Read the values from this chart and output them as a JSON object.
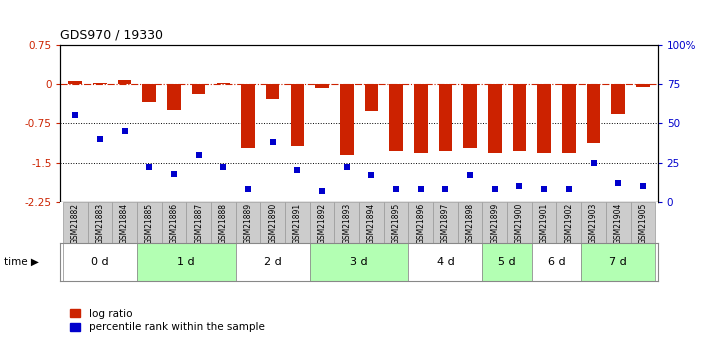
{
  "title": "GDS970 / 19330",
  "samples": [
    "GSM21882",
    "GSM21883",
    "GSM21884",
    "GSM21885",
    "GSM21886",
    "GSM21887",
    "GSM21888",
    "GSM21889",
    "GSM21890",
    "GSM21891",
    "GSM21892",
    "GSM21893",
    "GSM21894",
    "GSM21895",
    "GSM21896",
    "GSM21897",
    "GSM21898",
    "GSM21899",
    "GSM21900",
    "GSM21901",
    "GSM21902",
    "GSM21903",
    "GSM21904",
    "GSM21905"
  ],
  "log_ratio": [
    0.05,
    0.02,
    0.08,
    -0.35,
    -0.5,
    -0.18,
    0.02,
    -1.22,
    -0.28,
    -1.18,
    -0.08,
    -1.35,
    -0.52,
    -1.28,
    -1.32,
    -1.28,
    -1.22,
    -1.32,
    -1.28,
    -1.32,
    -1.32,
    -1.12,
    -0.58,
    -0.06
  ],
  "percentile_rank": [
    55,
    40,
    45,
    22,
    18,
    30,
    22,
    8,
    38,
    20,
    7,
    22,
    17,
    8,
    8,
    8,
    17,
    8,
    10,
    8,
    8,
    25,
    12,
    10
  ],
  "time_groups": [
    {
      "label": "0 d",
      "start": 0,
      "end": 3,
      "color": "#ffffff"
    },
    {
      "label": "1 d",
      "start": 3,
      "end": 7,
      "color": "#b3ffb3"
    },
    {
      "label": "2 d",
      "start": 7,
      "end": 10,
      "color": "#ffffff"
    },
    {
      "label": "3 d",
      "start": 10,
      "end": 14,
      "color": "#b3ffb3"
    },
    {
      "label": "4 d",
      "start": 14,
      "end": 17,
      "color": "#ffffff"
    },
    {
      "label": "5 d",
      "start": 17,
      "end": 19,
      "color": "#b3ffb3"
    },
    {
      "label": "6 d",
      "start": 19,
      "end": 21,
      "color": "#ffffff"
    },
    {
      "label": "7 d",
      "start": 21,
      "end": 24,
      "color": "#b3ffb3"
    }
  ],
  "ylim_left": [
    -2.25,
    0.75
  ],
  "ylim_right": [
    0,
    100
  ],
  "yticks_left": [
    0.75,
    0,
    -0.75,
    -1.5,
    -2.25
  ],
  "yticks_right": [
    0,
    25,
    50,
    75,
    100
  ],
  "ytick_labels_right": [
    "0",
    "25",
    "50",
    "75",
    "100%"
  ],
  "hline_zero": 0,
  "hline_dotted1": -0.75,
  "hline_dotted2": -1.5,
  "bar_color": "#cc2200",
  "scatter_color": "#0000cc",
  "bar_width": 0.55,
  "scatter_size": 18,
  "legend_items": [
    "log ratio",
    "percentile rank within the sample"
  ],
  "legend_colors": [
    "#cc2200",
    "#0000cc"
  ],
  "sample_box_color": "#cccccc",
  "sample_box_edgecolor": "#999999"
}
